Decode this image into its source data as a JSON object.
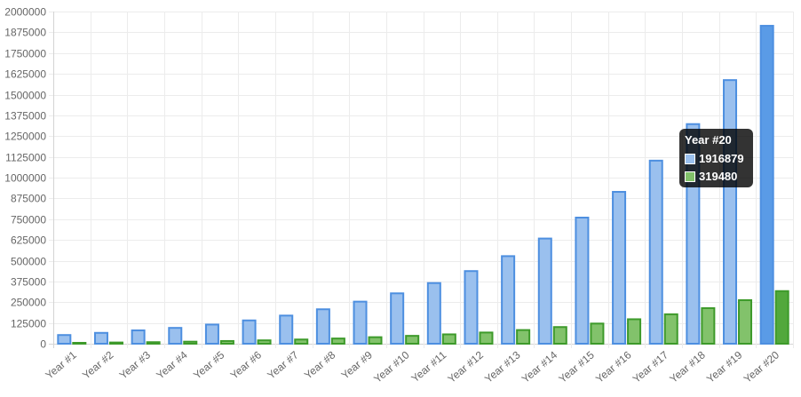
{
  "chart_data": {
    "type": "bar",
    "categories": [
      "Year #1",
      "Year #2",
      "Year #3",
      "Year #4",
      "Year #5",
      "Year #6",
      "Year #7",
      "Year #8",
      "Year #9",
      "Year #10",
      "Year #11",
      "Year #12",
      "Year #13",
      "Year #14",
      "Year #15",
      "Year #16",
      "Year #17",
      "Year #18",
      "Year #19",
      "Year #20"
    ],
    "series": [
      {
        "color_fill": "#9ac0ee",
        "color_border": "#4d8fe0",
        "values": [
          55000,
          68000,
          83000,
          98000,
          118000,
          143000,
          172000,
          210000,
          256000,
          306000,
          368000,
          440000,
          530000,
          636000,
          762000,
          917000,
          1105000,
          1325000,
          1590000,
          1916879
        ]
      },
      {
        "color_fill": "#82c26b",
        "color_border": "#3d9a2a",
        "values": [
          8000,
          10000,
          12000,
          15000,
          19000,
          23000,
          28000,
          34000,
          42000,
          50000,
          59000,
          70000,
          85000,
          103000,
          124000,
          150000,
          180000,
          217000,
          265000,
          319480
        ]
      }
    ],
    "ylim": [
      0,
      2000000
    ],
    "yticks": [
      0,
      125000,
      250000,
      375000,
      500000,
      625000,
      750000,
      875000,
      1000000,
      1125000,
      1250000,
      1375000,
      1500000,
      1625000,
      1750000,
      1875000,
      2000000
    ],
    "grid": true,
    "highlight_index": 19,
    "highlight_colors": [
      "#5a9be6",
      "#52a83c"
    ]
  },
  "tooltip": {
    "title": "Year #20",
    "values": [
      "1916879",
      "319480"
    ]
  }
}
